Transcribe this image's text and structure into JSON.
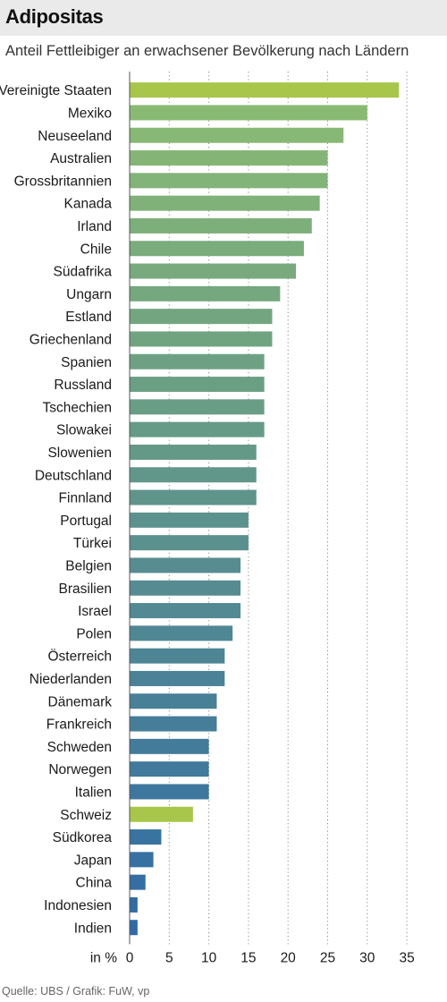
{
  "header": {
    "title": "Adipositas",
    "subtitle": "Anteil Fettleibiger an erwachsener Bevölkerung nach Ländern"
  },
  "footer": {
    "source": "Quelle: UBS / Grafik: FuW, vp"
  },
  "colors": {
    "highlight": "#a8c64a",
    "gradient_top": "#8cbc72",
    "gradient_bottom": "#2f6aa6",
    "gridline": "#888888"
  },
  "chart_data": {
    "type": "bar",
    "orientation": "horizontal",
    "title": "Adipositas",
    "subtitle": "Anteil Fettleibiger an erwachsener Bevölkerung nach Ländern",
    "xlabel": "in %",
    "xlim": [
      0,
      35
    ],
    "xticks": [
      0,
      5,
      10,
      15,
      20,
      25,
      30,
      35
    ],
    "grid": true,
    "categories": [
      "Vereinigte Staaten",
      "Mexiko",
      "Neuseeland",
      "Australien",
      "Grossbritannien",
      "Kanada",
      "Irland",
      "Chile",
      "Südafrika",
      "Ungarn",
      "Estland",
      "Griechenland",
      "Spanien",
      "Russland",
      "Tschechien",
      "Slowakei",
      "Slowenien",
      "Deutschland",
      "Finnland",
      "Portugal",
      "Türkei",
      "Belgien",
      "Brasilien",
      "Israel",
      "Polen",
      "Österreich",
      "Niederlanden",
      "Dänemark",
      "Frankreich",
      "Schweden",
      "Norwegen",
      "Italien",
      "Schweiz",
      "Südkorea",
      "Japan",
      "China",
      "Indonesien",
      "Indien"
    ],
    "values": [
      34,
      30,
      27,
      25,
      25,
      24,
      23,
      22,
      21,
      19,
      18,
      18,
      17,
      17,
      17,
      17,
      16,
      16,
      16,
      15,
      15,
      14,
      14,
      14,
      13,
      12,
      12,
      11,
      11,
      10,
      10,
      10,
      8,
      4,
      3,
      2,
      1,
      1
    ],
    "highlighted": [
      "Vereinigte Staaten",
      "Schweiz"
    ]
  }
}
